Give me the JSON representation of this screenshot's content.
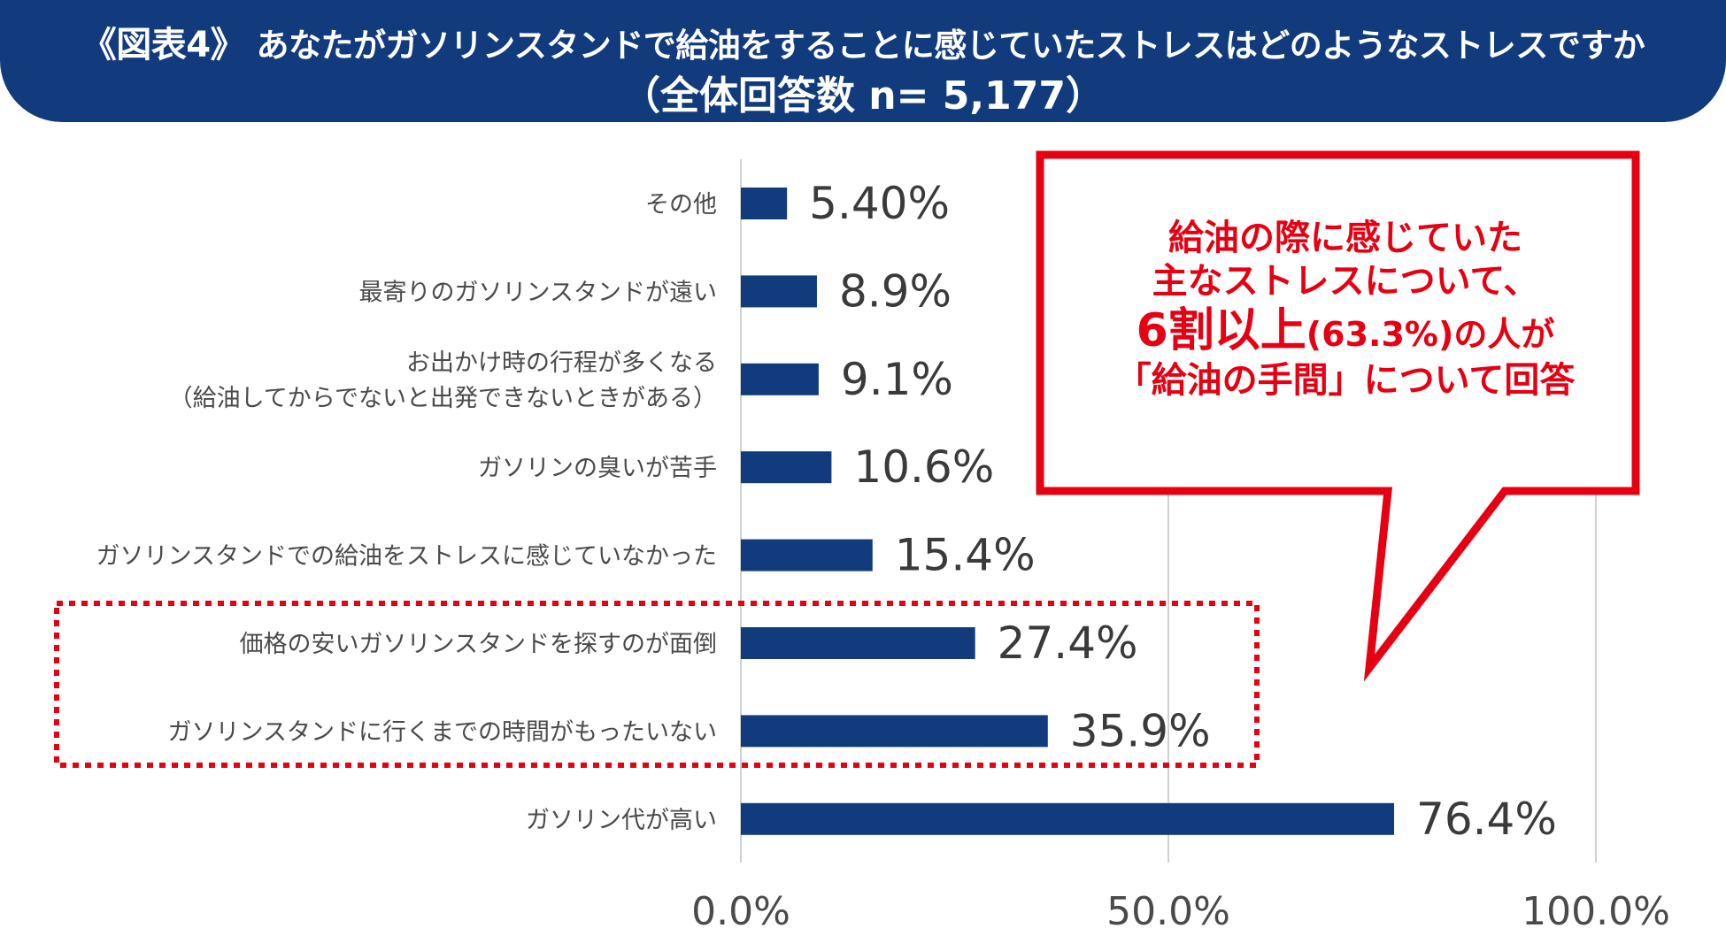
{
  "header": {
    "fig_label": "《図表4》",
    "question": "あなたがガソリンスタンドで給油をすることに感じていたストレスはどのようなストレスですか",
    "sample": "（全体回答数 n= 5,177）"
  },
  "callout": {
    "line1": "給油の際に感じていた",
    "line2": "主なストレスについて、",
    "line3_big": "6割以上",
    "line3_pct": "(63.3%)",
    "line3_tail": "の人が",
    "line4": "「給油の手間」について回答"
  },
  "colors": {
    "bar": "#123b7d",
    "header_bg": "#123b7d",
    "accent_red": "#e60012",
    "grid": "#d0d0d0"
  },
  "chart_data": {
    "type": "bar",
    "orientation": "horizontal",
    "xlim": [
      0,
      100
    ],
    "xticks": [
      "0.0%",
      "50.0%",
      "100.0%"
    ],
    "grid": true,
    "categories": [
      [
        "その他"
      ],
      [
        "最寄りのガソリンスタンドが遠い"
      ],
      [
        "お出かけ時の行程が多くなる",
        "（給油してからでないと出発できないときがある）"
      ],
      [
        "ガソリンの臭いが苦手"
      ],
      [
        "ガソリンスタンドでの給油をストレスに感じていなかった"
      ],
      [
        "価格の安いガソリンスタンドを探すのが面倒"
      ],
      [
        "ガソリンスタンドに行くまでの時間がもったいない"
      ],
      [
        "ガソリン代が高い"
      ]
    ],
    "values": [
      5.4,
      8.9,
      9.1,
      10.6,
      15.4,
      27.4,
      35.9,
      76.4
    ],
    "value_labels": [
      "5.40%",
      "8.9%",
      "9.1%",
      "10.6%",
      "15.4%",
      "27.4%",
      "35.9%",
      "76.4%"
    ],
    "highlighted": [
      "価格の安いガソリンスタンドを探すのが面倒",
      "ガソリンスタンドに行くまでの時間がもったいない"
    ]
  }
}
